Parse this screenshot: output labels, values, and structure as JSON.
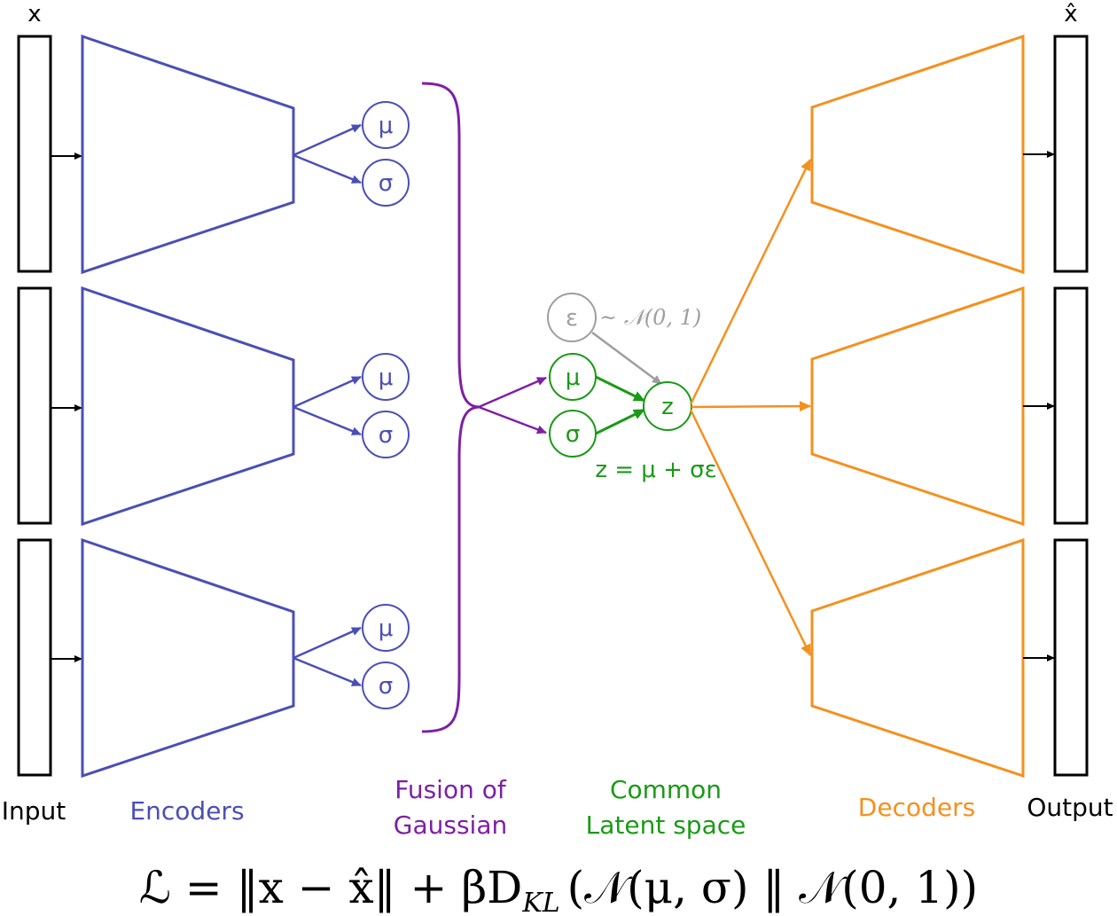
{
  "labels": {
    "x_top": "x",
    "xhat_top": "x̂",
    "input": "Input",
    "encoders": "Encoders",
    "fusion_line1": "Fusion of",
    "fusion_line2": "Gaussian",
    "latent_line1": "Common",
    "latent_line2": "Latent space",
    "decoders": "Decoders",
    "output": "Output"
  },
  "encoder_nodes": {
    "mu": "μ",
    "sigma": "σ"
  },
  "latent": {
    "epsilon": "ε",
    "prior": "~ 𝒩(0, 1)",
    "mu": "μ",
    "sigma": "σ",
    "z": "z",
    "equation": "z = μ + σε"
  },
  "loss": "ℒ = ‖x − x̂‖ + βD",
  "loss_sub": "KL",
  "loss_tail": "(𝒩(μ, σ) ‖ 𝒩(0, 1))",
  "colors": {
    "encoder": "#4a4fb5",
    "fusion": "#7e1fa6",
    "latent": "#1a9a17",
    "decoder": "#f5901e",
    "epsilon": "#9e9e9e",
    "io": "#000000"
  }
}
